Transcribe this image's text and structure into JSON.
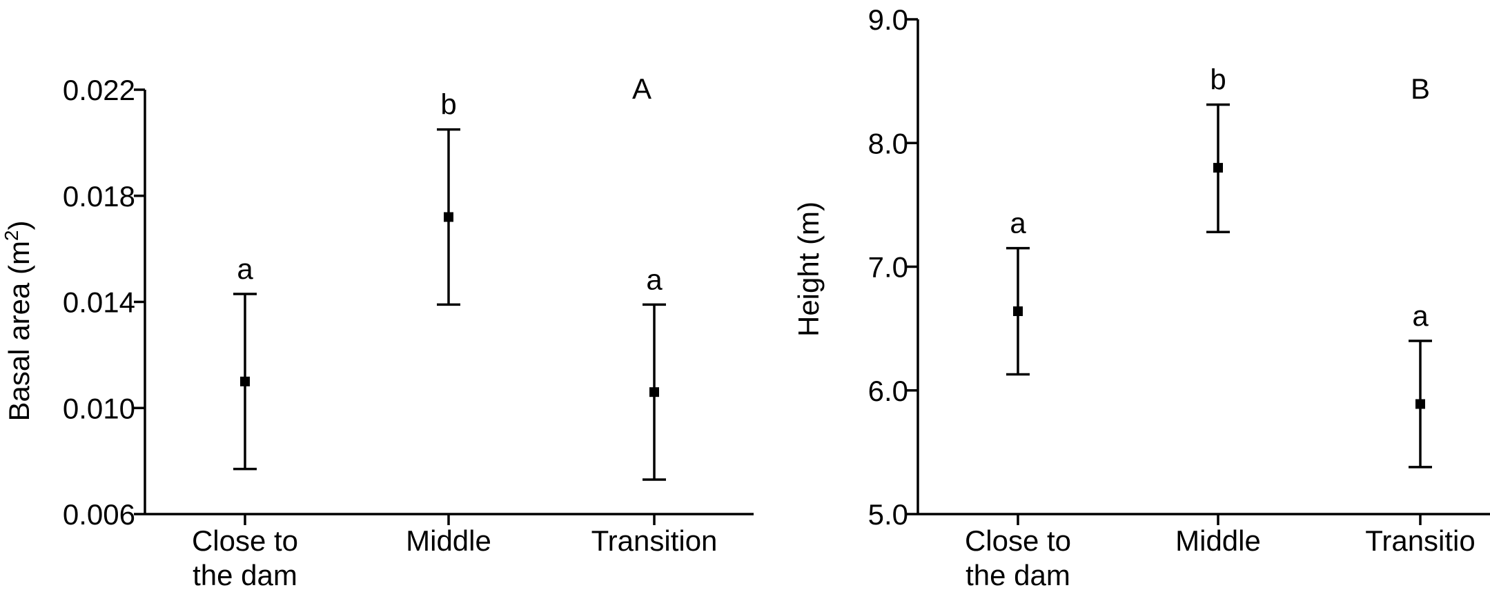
{
  "chart_data": [
    {
      "type": "scatter",
      "panel_label": "A",
      "ylabel": "Basal area (m",
      "ylabel_superscript": "2",
      "ylabel_suffix": ")",
      "xlabel": "",
      "ylim": [
        0.006,
        0.022
      ],
      "yticks": [
        0.006,
        0.01,
        0.014,
        0.018,
        0.022
      ],
      "ytick_labels": [
        "0.006",
        "0.010",
        "0.014",
        "0.018",
        "0.022"
      ],
      "categories": [
        {
          "line1": "Close to",
          "line2": "the dam"
        },
        {
          "line1": "Middle",
          "line2": ""
        },
        {
          "line1": "Transition",
          "line2": ""
        }
      ],
      "values": [
        0.011,
        0.0172,
        0.0106
      ],
      "error_low": [
        0.0077,
        0.0139,
        0.0073
      ],
      "error_high": [
        0.0143,
        0.0205,
        0.0139
      ],
      "annotations": [
        "a",
        "b",
        "a"
      ]
    },
    {
      "type": "scatter",
      "panel_label": "B",
      "ylabel": "Height (m)",
      "xlabel": "",
      "ylim": [
        5.0,
        9.0
      ],
      "yticks": [
        5.0,
        6.0,
        7.0,
        8.0,
        9.0
      ],
      "ytick_labels": [
        "5.0",
        "6.0",
        "7.0",
        "8.0",
        "9.0"
      ],
      "categories": [
        {
          "line1": "Close to",
          "line2": "the dam"
        },
        {
          "line1": "Middle",
          "line2": ""
        },
        {
          "line1": "Transitio",
          "line2": ""
        }
      ],
      "values": [
        6.64,
        7.8,
        5.89
      ],
      "error_low": [
        6.13,
        7.28,
        5.38
      ],
      "error_high": [
        7.15,
        8.31,
        6.4
      ],
      "annotations": [
        "a",
        "b",
        "a"
      ]
    }
  ]
}
